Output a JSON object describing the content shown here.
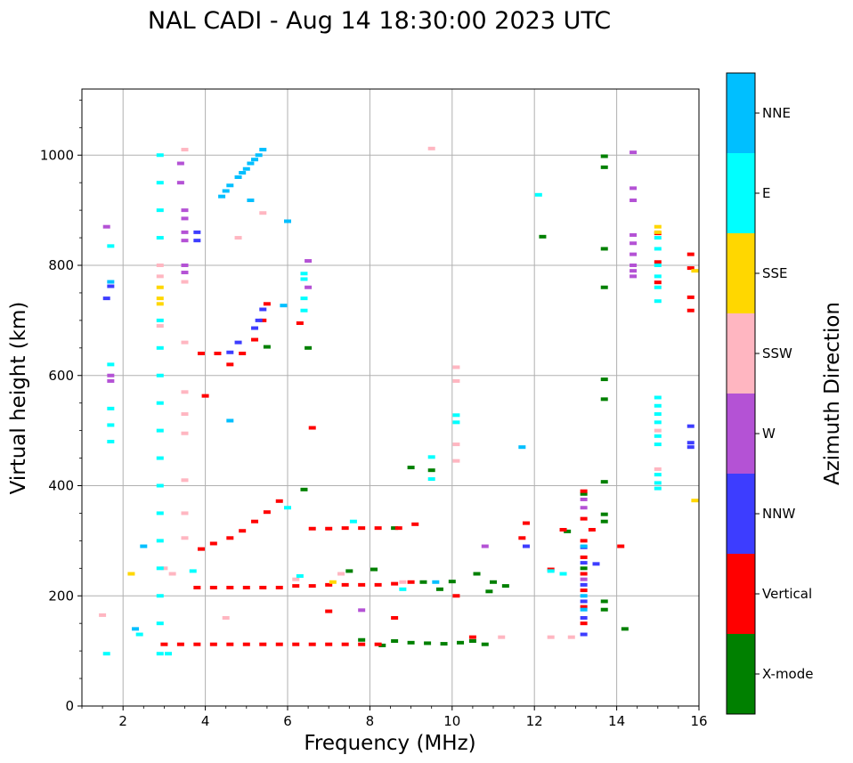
{
  "chart_data": {
    "type": "scatter",
    "title": "NAL CADI - Aug 14 18:30:00 2023 UTC",
    "xlabel": "Frequency (MHz)",
    "ylabel": "Virtual height (km)",
    "xlim": [
      1,
      16
    ],
    "ylim": [
      0,
      1120
    ],
    "x_ticks": [
      2,
      4,
      6,
      8,
      10,
      12,
      14,
      16
    ],
    "y_ticks": [
      0,
      200,
      400,
      600,
      800,
      1000
    ],
    "grid": true,
    "colorbar": {
      "title": "Azimuth Direction",
      "categories": [
        "X-mode",
        "Vertical",
        "NNW",
        "W",
        "SSW",
        "SSE",
        "E",
        "NNE"
      ],
      "colors": [
        "#008000",
        "#ff0000",
        "#3d3dff",
        "#b452d5",
        "#ffb6c1",
        "#ffd700",
        "#00ffff",
        "#00bfff"
      ]
    },
    "series": [
      {
        "name": "X-mode",
        "points": [
          [
            8.6,
            118
          ],
          [
            9.0,
            115
          ],
          [
            9.4,
            114
          ],
          [
            9.8,
            113
          ],
          [
            10.2,
            115
          ],
          [
            10.5,
            118
          ],
          [
            10.8,
            112
          ],
          [
            7.8,
            120
          ],
          [
            8.3,
            110
          ],
          [
            10.0,
            226
          ],
          [
            10.6,
            240
          ],
          [
            9.3,
            225
          ],
          [
            9.7,
            212
          ],
          [
            8.6,
            323
          ],
          [
            9.0,
            433
          ],
          [
            9.5,
            428
          ],
          [
            6.4,
            393
          ],
          [
            13.7,
            998
          ],
          [
            13.7,
            978
          ],
          [
            13.7,
            830
          ],
          [
            13.7,
            760
          ],
          [
            13.7,
            593
          ],
          [
            13.7,
            557
          ],
          [
            13.7,
            407
          ],
          [
            13.7,
            348
          ],
          [
            13.7,
            335
          ],
          [
            13.7,
            190
          ],
          [
            13.7,
            175
          ],
          [
            12.8,
            317
          ],
          [
            13.2,
            385
          ],
          [
            13.2,
            250
          ],
          [
            11.3,
            218
          ],
          [
            12.2,
            852
          ],
          [
            14.2,
            140
          ],
          [
            6.5,
            650
          ],
          [
            5.5,
            652
          ],
          [
            10.9,
            208
          ],
          [
            8.1,
            248
          ],
          [
            7.5,
            245
          ],
          [
            11.0,
            225
          ]
        ]
      },
      {
        "name": "Vertical",
        "points": [
          [
            3.0,
            112
          ],
          [
            3.4,
            112
          ],
          [
            3.8,
            112
          ],
          [
            4.2,
            112
          ],
          [
            4.6,
            112
          ],
          [
            5.0,
            112
          ],
          [
            5.4,
            112
          ],
          [
            5.8,
            112
          ],
          [
            6.2,
            112
          ],
          [
            6.6,
            112
          ],
          [
            7.0,
            112
          ],
          [
            7.4,
            112
          ],
          [
            7.8,
            112
          ],
          [
            8.2,
            112
          ],
          [
            3.8,
            215
          ],
          [
            4.2,
            215
          ],
          [
            4.6,
            215
          ],
          [
            5.0,
            215
          ],
          [
            5.4,
            215
          ],
          [
            5.8,
            215
          ],
          [
            6.2,
            218
          ],
          [
            6.6,
            218
          ],
          [
            7.0,
            220
          ],
          [
            7.4,
            220
          ],
          [
            7.8,
            220
          ],
          [
            8.2,
            220
          ],
          [
            8.6,
            222
          ],
          [
            9.0,
            225
          ],
          [
            6.6,
            322
          ],
          [
            7.0,
            322
          ],
          [
            7.4,
            323
          ],
          [
            7.8,
            323
          ],
          [
            8.2,
            323
          ],
          [
            8.7,
            323
          ],
          [
            9.1,
            330
          ],
          [
            3.9,
            285
          ],
          [
            4.2,
            295
          ],
          [
            4.6,
            305
          ],
          [
            4.9,
            318
          ],
          [
            5.2,
            335
          ],
          [
            5.5,
            352
          ],
          [
            5.8,
            372
          ],
          [
            3.9,
            640
          ],
          [
            4.3,
            640
          ],
          [
            4.6,
            620
          ],
          [
            4.9,
            640
          ],
          [
            5.2,
            665
          ],
          [
            5.4,
            700
          ],
          [
            5.5,
            730
          ],
          [
            4.0,
            563
          ],
          [
            6.3,
            695
          ],
          [
            6.6,
            505
          ],
          [
            13.2,
            390
          ],
          [
            13.2,
            340
          ],
          [
            13.2,
            300
          ],
          [
            13.2,
            270
          ],
          [
            13.2,
            240
          ],
          [
            13.2,
            210
          ],
          [
            13.2,
            180
          ],
          [
            13.2,
            150
          ],
          [
            14.1,
            290
          ],
          [
            15.0,
            858
          ],
          [
            15.0,
            806
          ],
          [
            15.0,
            769
          ],
          [
            15.8,
            820
          ],
          [
            15.8,
            795
          ],
          [
            15.8,
            742
          ],
          [
            15.8,
            718
          ],
          [
            11.8,
            332
          ],
          [
            11.7,
            305
          ],
          [
            12.4,
            248
          ],
          [
            13.4,
            320
          ],
          [
            10.1,
            200
          ],
          [
            10.5,
            125
          ],
          [
            7.0,
            172
          ],
          [
            8.6,
            160
          ],
          [
            12.7,
            320
          ]
        ]
      },
      {
        "name": "NNW",
        "points": [
          [
            13.2,
            130
          ],
          [
            13.2,
            160
          ],
          [
            13.2,
            190
          ],
          [
            13.2,
            220
          ],
          [
            13.2,
            260
          ],
          [
            13.2,
            288
          ],
          [
            15.8,
            508
          ],
          [
            15.8,
            478
          ],
          [
            15.8,
            470
          ],
          [
            1.7,
            762
          ],
          [
            1.6,
            740
          ],
          [
            5.3,
            700
          ],
          [
            5.4,
            720
          ],
          [
            5.2,
            686
          ],
          [
            4.8,
            660
          ],
          [
            4.6,
            642
          ],
          [
            3.8,
            860
          ],
          [
            3.8,
            845
          ],
          [
            13.5,
            258
          ],
          [
            11.8,
            290
          ]
        ]
      },
      {
        "name": "W",
        "points": [
          [
            1.6,
            870
          ],
          [
            1.7,
            600
          ],
          [
            1.7,
            590
          ],
          [
            3.5,
            900
          ],
          [
            3.5,
            885
          ],
          [
            3.5,
            860
          ],
          [
            3.5,
            845
          ],
          [
            3.5,
            800
          ],
          [
            3.5,
            787
          ],
          [
            3.4,
            950
          ],
          [
            3.4,
            985
          ],
          [
            6.5,
            808
          ],
          [
            6.5,
            760
          ],
          [
            13.2,
            375
          ],
          [
            13.2,
            360
          ],
          [
            14.4,
            855
          ],
          [
            14.4,
            840
          ],
          [
            14.4,
            820
          ],
          [
            14.4,
            800
          ],
          [
            14.4,
            790
          ],
          [
            14.4,
            780
          ],
          [
            14.4,
            1005
          ],
          [
            14.4,
            940
          ],
          [
            14.4,
            918
          ],
          [
            10.8,
            290
          ],
          [
            13.2,
            230
          ],
          [
            7.8,
            174
          ]
        ]
      },
      {
        "name": "SSW",
        "points": [
          [
            2.9,
            800
          ],
          [
            2.9,
            780
          ],
          [
            2.9,
            690
          ],
          [
            3.5,
            1010
          ],
          [
            3.5,
            770
          ],
          [
            3.5,
            660
          ],
          [
            3.5,
            570
          ],
          [
            3.5,
            530
          ],
          [
            3.5,
            495
          ],
          [
            3.5,
            410
          ],
          [
            3.5,
            350
          ],
          [
            3.5,
            305
          ],
          [
            3.0,
            250
          ],
          [
            3.2,
            240
          ],
          [
            1.5,
            165
          ],
          [
            10.1,
            615
          ],
          [
            10.1,
            590
          ],
          [
            10.1,
            475
          ],
          [
            10.1,
            445
          ],
          [
            12.4,
            125
          ],
          [
            12.9,
            125
          ],
          [
            11.2,
            125
          ],
          [
            9.5,
            1012
          ],
          [
            4.8,
            850
          ],
          [
            5.4,
            895
          ],
          [
            8.8,
            225
          ],
          [
            4.5,
            160
          ],
          [
            7.3,
            240
          ],
          [
            6.2,
            230
          ],
          [
            15.0,
            500
          ],
          [
            15.0,
            430
          ]
        ]
      },
      {
        "name": "SSE",
        "points": [
          [
            2.9,
            760
          ],
          [
            2.9,
            740
          ],
          [
            2.9,
            730
          ],
          [
            15.0,
            870
          ],
          [
            15.0,
            860
          ],
          [
            2.2,
            240
          ],
          [
            15.9,
            373
          ],
          [
            15.9,
            790
          ],
          [
            7.1,
            225
          ]
        ]
      },
      {
        "name": "E",
        "points": [
          [
            2.9,
            1000
          ],
          [
            2.9,
            950
          ],
          [
            2.9,
            900
          ],
          [
            2.9,
            850
          ],
          [
            2.9,
            700
          ],
          [
            2.9,
            650
          ],
          [
            2.9,
            600
          ],
          [
            2.9,
            550
          ],
          [
            2.9,
            500
          ],
          [
            2.9,
            450
          ],
          [
            2.9,
            400
          ],
          [
            2.9,
            350
          ],
          [
            2.9,
            300
          ],
          [
            2.9,
            250
          ],
          [
            2.9,
            200
          ],
          [
            2.9,
            150
          ],
          [
            2.9,
            95
          ],
          [
            3.1,
            95
          ],
          [
            1.7,
            540
          ],
          [
            1.7,
            510
          ],
          [
            1.7,
            480
          ],
          [
            1.7,
            620
          ],
          [
            1.7,
            835
          ],
          [
            15.0,
            850
          ],
          [
            15.0,
            830
          ],
          [
            15.0,
            800
          ],
          [
            15.0,
            780
          ],
          [
            15.0,
            760
          ],
          [
            15.0,
            735
          ],
          [
            15.0,
            560
          ],
          [
            15.0,
            545
          ],
          [
            15.0,
            530
          ],
          [
            15.0,
            515
          ],
          [
            15.0,
            490
          ],
          [
            15.0,
            475
          ],
          [
            15.0,
            420
          ],
          [
            15.0,
            405
          ],
          [
            15.0,
            395
          ],
          [
            6.4,
            785
          ],
          [
            6.4,
            775
          ],
          [
            6.4,
            740
          ],
          [
            6.4,
            718
          ],
          [
            12.4,
            245
          ],
          [
            12.7,
            240
          ],
          [
            10.1,
            528
          ],
          [
            10.1,
            515
          ],
          [
            9.5,
            452
          ],
          [
            9.5,
            412
          ],
          [
            6.0,
            360
          ],
          [
            8.8,
            212
          ],
          [
            12.1,
            928
          ],
          [
            1.6,
            95
          ],
          [
            2.4,
            130
          ],
          [
            3.7,
            245
          ],
          [
            6.3,
            236
          ],
          [
            7.6,
            335
          ]
        ]
      },
      {
        "name": "NNE",
        "points": [
          [
            4.4,
            925
          ],
          [
            4.5,
            935
          ],
          [
            4.6,
            945
          ],
          [
            4.8,
            960
          ],
          [
            4.9,
            968
          ],
          [
            5.0,
            975
          ],
          [
            5.1,
            985
          ],
          [
            5.2,
            992
          ],
          [
            5.3,
            1000
          ],
          [
            5.4,
            1010
          ],
          [
            5.1,
            918
          ],
          [
            1.7,
            770
          ],
          [
            13.2,
            200
          ],
          [
            13.2,
            175
          ],
          [
            13.2,
            290
          ],
          [
            11.7,
            470
          ],
          [
            4.6,
            518
          ],
          [
            9.6,
            225
          ],
          [
            2.3,
            140
          ],
          [
            2.5,
            290
          ],
          [
            5.9,
            727
          ],
          [
            6.0,
            880
          ]
        ]
      }
    ]
  }
}
